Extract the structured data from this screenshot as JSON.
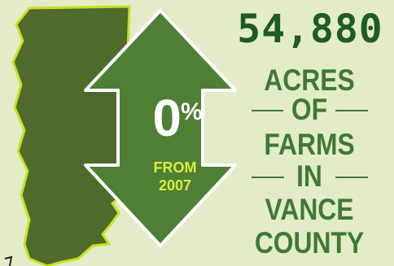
{
  "colors": {
    "background": "#e3ecc9",
    "county_fill": "#4e6b2c",
    "county_outline": "#c9e021",
    "arrow_fill": "#4e7f35",
    "arrow_outline": "#ffffff",
    "headline_number": "#1f5a2a",
    "headline_text": "#3f7a33",
    "from_text": "#d8ef3a"
  },
  "icons": {
    "county_shape": "vance-county-map-icon",
    "arrow": "double-headed-vertical-arrow-icon"
  },
  "change": {
    "value": "0",
    "unit": "%",
    "from_line_1": "FROM",
    "from_line_2": "2007"
  },
  "headline": {
    "number": "54,880",
    "lines": [
      "ACRES",
      "OF",
      "FARMS",
      "IN",
      "VANCE",
      "COUNTY"
    ]
  }
}
